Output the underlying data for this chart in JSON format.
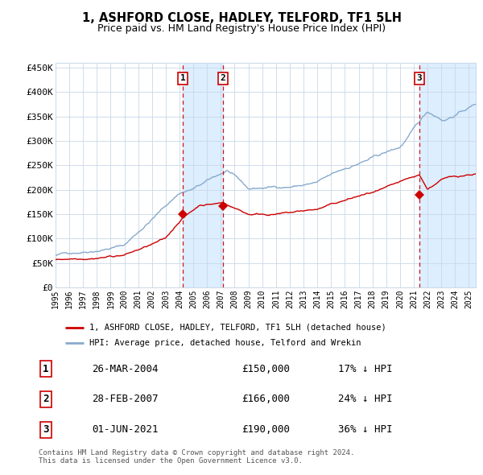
{
  "title": "1, ASHFORD CLOSE, HADLEY, TELFORD, TF1 5LH",
  "subtitle": "Price paid vs. HM Land Registry's House Price Index (HPI)",
  "legend_label_red": "1, ASHFORD CLOSE, HADLEY, TELFORD, TF1 5LH (detached house)",
  "legend_label_blue": "HPI: Average price, detached house, Telford and Wrekin",
  "footer": "Contains HM Land Registry data © Crown copyright and database right 2024.\nThis data is licensed under the Open Government Licence v3.0.",
  "sale_markers": [
    {
      "label": "1",
      "date": "26-MAR-2004",
      "price": 150000,
      "pct": "17%",
      "dir": "↓",
      "x_year": 2004.23
    },
    {
      "label": "2",
      "date": "28-FEB-2007",
      "price": 166000,
      "pct": "24%",
      "dir": "↓",
      "x_year": 2007.16
    },
    {
      "label": "3",
      "date": "01-JUN-2021",
      "price": 190000,
      "pct": "36%",
      "dir": "↓",
      "x_year": 2021.42
    }
  ],
  "sale_marker_prices": [
    150000,
    166000,
    190000
  ],
  "ylim": [
    0,
    460000
  ],
  "xlim_start": 1995.0,
  "xlim_end": 2025.5,
  "yticks": [
    0,
    50000,
    100000,
    150000,
    200000,
    250000,
    300000,
    350000,
    400000,
    450000
  ],
  "ytick_labels": [
    "£0",
    "£50K",
    "£100K",
    "£150K",
    "£200K",
    "£250K",
    "£300K",
    "£350K",
    "£400K",
    "£450K"
  ],
  "xtick_years": [
    1995,
    1996,
    1997,
    1998,
    1999,
    2000,
    2001,
    2002,
    2003,
    2004,
    2005,
    2006,
    2007,
    2008,
    2009,
    2010,
    2011,
    2012,
    2013,
    2014,
    2015,
    2016,
    2017,
    2018,
    2019,
    2020,
    2021,
    2022,
    2023,
    2024,
    2025
  ],
  "red_color": "#cc0000",
  "blue_color": "#88aacc",
  "shade_color": "#ddeeff",
  "grid_color": "#c8d8e8",
  "bg_color": "#ffffff",
  "table_border_color": "#cc0000"
}
